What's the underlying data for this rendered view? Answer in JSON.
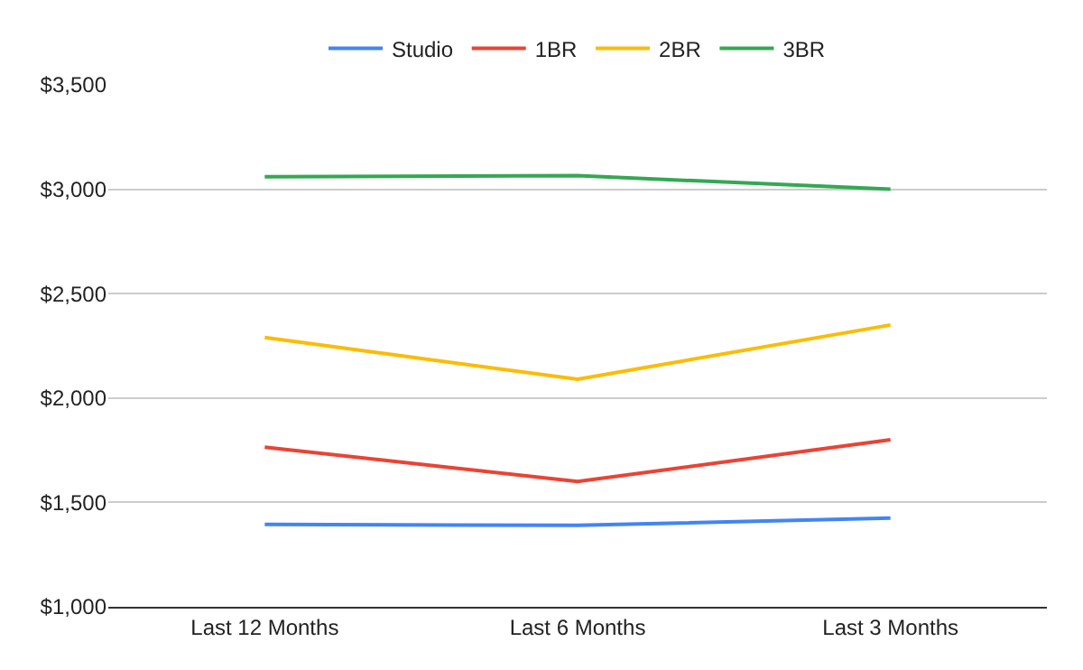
{
  "chart_data": {
    "type": "line",
    "categories": [
      "Last 12 Months",
      "Last 6 Months",
      "Last 3 Months"
    ],
    "series": [
      {
        "name": "Studio",
        "color": "#4285f4",
        "values": [
          1395,
          1390,
          1425
        ]
      },
      {
        "name": "1BR",
        "color": "#ea4335",
        "values": [
          1765,
          1600,
          1800
        ]
      },
      {
        "name": "2BR",
        "color": "#fbbc04",
        "values": [
          2290,
          2090,
          2350
        ]
      },
      {
        "name": "3BR",
        "color": "#34a853",
        "values": [
          3060,
          3065,
          3000
        ]
      }
    ],
    "ylim": [
      1000,
      3500
    ],
    "yticks": [
      {
        "value": 1000,
        "label": "$1,000"
      },
      {
        "value": 1500,
        "label": "$1,500"
      },
      {
        "value": 2000,
        "label": "$2,000"
      },
      {
        "value": 2500,
        "label": "$2,500"
      },
      {
        "value": 3000,
        "label": "$3,000"
      },
      {
        "value": 3500,
        "label": "$3,500"
      }
    ],
    "grid": "y",
    "legend": "top",
    "marker": "none",
    "line_style": "solid"
  }
}
